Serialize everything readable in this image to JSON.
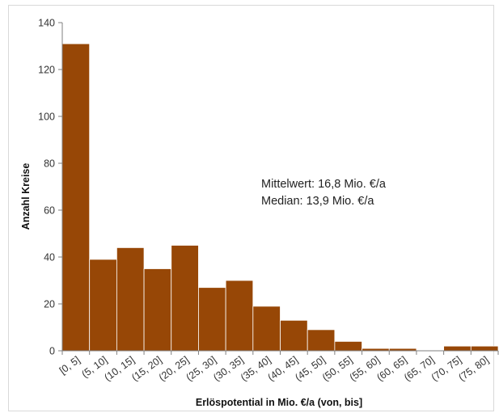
{
  "chart_data": {
    "type": "bar",
    "title": "",
    "xlabel": "Erlöspotential  in Mio. €/a (von, bis]",
    "ylabel": "Anzahl Kreise",
    "ylim": [
      0,
      140
    ],
    "yticks": [
      0,
      20,
      40,
      60,
      80,
      100,
      120,
      140
    ],
    "grid": false,
    "legend": "none",
    "categories": [
      "[0, 5]",
      "(5, 10]",
      "(10, 15]",
      "(15, 20]",
      "(20, 25]",
      "(25, 30]",
      "(30, 35]",
      "(35, 40]",
      "(40, 45]",
      "(45, 50]",
      "(50, 55]",
      "(55, 60]",
      "(60, 65]",
      "(65, 70]",
      "(70, 75]",
      "(75, 80]"
    ],
    "values": [
      131,
      39,
      44,
      35,
      45,
      27,
      30,
      19,
      13,
      9,
      4,
      1,
      1,
      0,
      2,
      2
    ],
    "bar_color": "#974706",
    "annotations": [
      "Mittelwert: 16,8 Mio. €/a",
      "Median: 13,9 Mio. €/a"
    ]
  }
}
